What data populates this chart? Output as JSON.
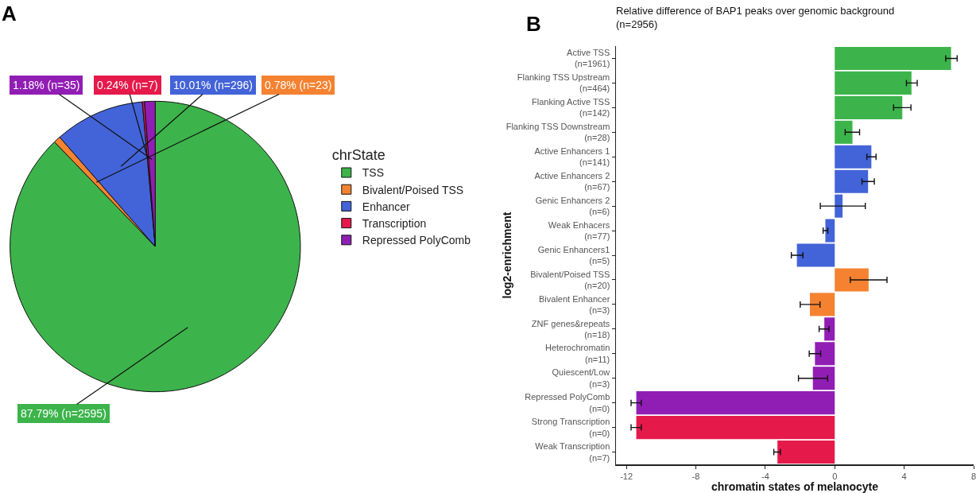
{
  "chart_data": [
    {
      "type": "pie",
      "annotations": [
        "A"
      ],
      "legend_title": "chrState",
      "legend": "right",
      "categories": [
        "TSS",
        "Bivalent/Poised TSS",
        "Enhancer",
        "Transcription",
        "Repressed PolyComb"
      ],
      "values": [
        87.79,
        0.78,
        10.01,
        0.24,
        1.18
      ],
      "value_labels": [
        "87.79% (n=2595)",
        "0.78% (n=23)",
        "10.01% (n=296)",
        "0.24% (n=7)",
        "1.18% (n=35)"
      ],
      "colors": [
        "#3cb44b",
        "#f58231",
        "#4363d8",
        "#e6194b",
        "#911eb4"
      ]
    },
    {
      "type": "bar",
      "orientation": "horizontal",
      "annotations": [
        "B"
      ],
      "title": "Relative difference of BAP1 peaks over genomic background\n(n=2956)",
      "xlabel": "chromatin states of melanocyte",
      "ylabel": "log2-enrichment",
      "categories": [
        "Active TSS\n(n=1961)",
        "Flanking TSS Upstream\n(n=464)",
        "Flanking Active TSS\n(n=142)",
        "Flanking TSS Downstream\n(n=28)",
        "Active Enhancers 1\n(n=141)",
        "Active Enhancers 2\n(n=67)",
        "Genic Enhancers 2\n(n=6)",
        "Weak Enhacers\n(n=77)",
        "Genic Enhancers1\n(n=5)",
        "Bivalent/Poised TSS\n(n=20)",
        "Bivalent Enhancer\n(n=3)",
        "ZNF genes&repeats\n(n=18)",
        "Heterochromatin\n(n=11)",
        "Quiescent/Low\n(n=3)",
        "Repressed PolyComb\n(n=0)",
        "Strong Transcription\n(n=0)",
        "Weak Transcription\n(n=7)"
      ],
      "values": [
        6.7,
        4.42,
        3.89,
        1.02,
        2.11,
        1.92,
        0.45,
        -0.54,
        -2.18,
        1.95,
        -1.43,
        -0.6,
        -1.14,
        -1.26,
        -11.43,
        -11.43,
        -3.3
      ],
      "errors": [
        [
          6.39,
          7.05
        ],
        [
          4.13,
          4.75
        ],
        [
          3.39,
          4.39
        ],
        [
          0.6,
          1.43
        ],
        [
          1.85,
          2.38
        ],
        [
          1.57,
          2.28
        ],
        [
          -0.83,
          1.76
        ],
        [
          -0.67,
          -0.4
        ],
        [
          -2.5,
          -1.83
        ],
        [
          0.9,
          3.01
        ],
        [
          -1.99,
          -0.85
        ],
        [
          -0.9,
          -0.33
        ],
        [
          -1.47,
          -0.81
        ],
        [
          -2.09,
          -0.41
        ],
        [
          -11.73,
          -11.14
        ],
        [
          -11.73,
          -11.14
        ],
        [
          -3.51,
          -3.13
        ]
      ],
      "colors": [
        "#3cb44b",
        "#3cb44b",
        "#3cb44b",
        "#3cb44b",
        "#4363d8",
        "#4363d8",
        "#4363d8",
        "#4363d8",
        "#4363d8",
        "#f58231",
        "#f58231",
        "#911eb4",
        "#911eb4",
        "#911eb4",
        "#911eb4",
        "#e6194b",
        "#e6194b"
      ],
      "xlim": [
        -12.6,
        8
      ],
      "xticks": [
        -12,
        -8,
        -4,
        0,
        4,
        8
      ],
      "grid": false,
      "legend": false
    }
  ]
}
